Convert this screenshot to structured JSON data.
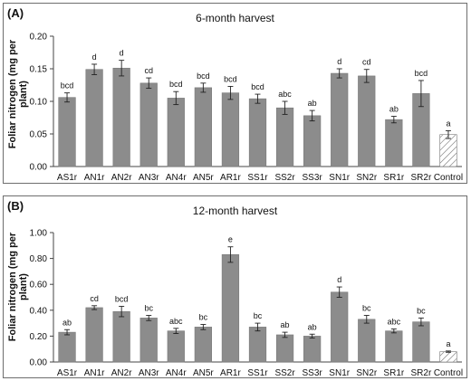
{
  "chart_data": [
    {
      "type": "bar",
      "panel_label": "(A)",
      "title": "6-month harvest",
      "ylabel": "Foliar nitrogen (mg per plant)",
      "xlabel": "",
      "ylim": [
        0,
        0.2
      ],
      "yticks": [
        "0.00",
        "0.05",
        "0.10",
        "0.15",
        "0.20"
      ],
      "categories": [
        "AS1r",
        "AN1r",
        "AN2r",
        "AN3r",
        "AN4r",
        "AN5r",
        "AR1r",
        "SS1r",
        "SS2r",
        "SS3r",
        "SN1r",
        "SN2r",
        "SR1r",
        "SR2r",
        "Control"
      ],
      "values": [
        0.106,
        0.149,
        0.151,
        0.128,
        0.105,
        0.121,
        0.113,
        0.104,
        0.09,
        0.078,
        0.143,
        0.139,
        0.072,
        0.112,
        0.049
      ],
      "errors": [
        0.007,
        0.008,
        0.012,
        0.008,
        0.01,
        0.007,
        0.01,
        0.007,
        0.01,
        0.008,
        0.007,
        0.01,
        0.005,
        0.02,
        0.006
      ],
      "letters": [
        "bcd",
        "d",
        "d",
        "cd",
        "bcd",
        "bcd",
        "bcd",
        "bcd",
        "abc",
        "ab",
        "d",
        "cd",
        "ab",
        "bcd",
        "a"
      ],
      "bar_color": "#8c8c8c",
      "control_pattern": "hatched",
      "grid": false
    },
    {
      "type": "bar",
      "panel_label": "(B)",
      "title": "12-month harvest",
      "ylabel": "Foliar nitrogen (mg per plant)",
      "xlabel": "",
      "ylim": [
        0,
        1.0
      ],
      "yticks": [
        "0.00",
        "0.20",
        "0.40",
        "0.60",
        "0.80",
        "1.00"
      ],
      "categories": [
        "AS1r",
        "AN1r",
        "AN2r",
        "AN3r",
        "AN4r",
        "AN5r",
        "AR1r",
        "SS1r",
        "SS2r",
        "SS3r",
        "SN1r",
        "SN2r",
        "SR1r",
        "SR2r",
        "Control"
      ],
      "values": [
        0.23,
        0.42,
        0.39,
        0.34,
        0.24,
        0.27,
        0.83,
        0.27,
        0.21,
        0.2,
        0.54,
        0.33,
        0.24,
        0.31,
        0.08
      ],
      "errors": [
        0.02,
        0.015,
        0.04,
        0.02,
        0.02,
        0.02,
        0.06,
        0.03,
        0.02,
        0.015,
        0.04,
        0.03,
        0.015,
        0.03,
        0.005
      ],
      "letters": [
        "ab",
        "cd",
        "bcd",
        "bc",
        "abc",
        "bc",
        "e",
        "bc",
        "ab",
        "ab",
        "d",
        "bc",
        "abc",
        "bc",
        "a"
      ],
      "bar_color": "#8c8c8c",
      "control_pattern": "hatched",
      "grid": false
    }
  ]
}
